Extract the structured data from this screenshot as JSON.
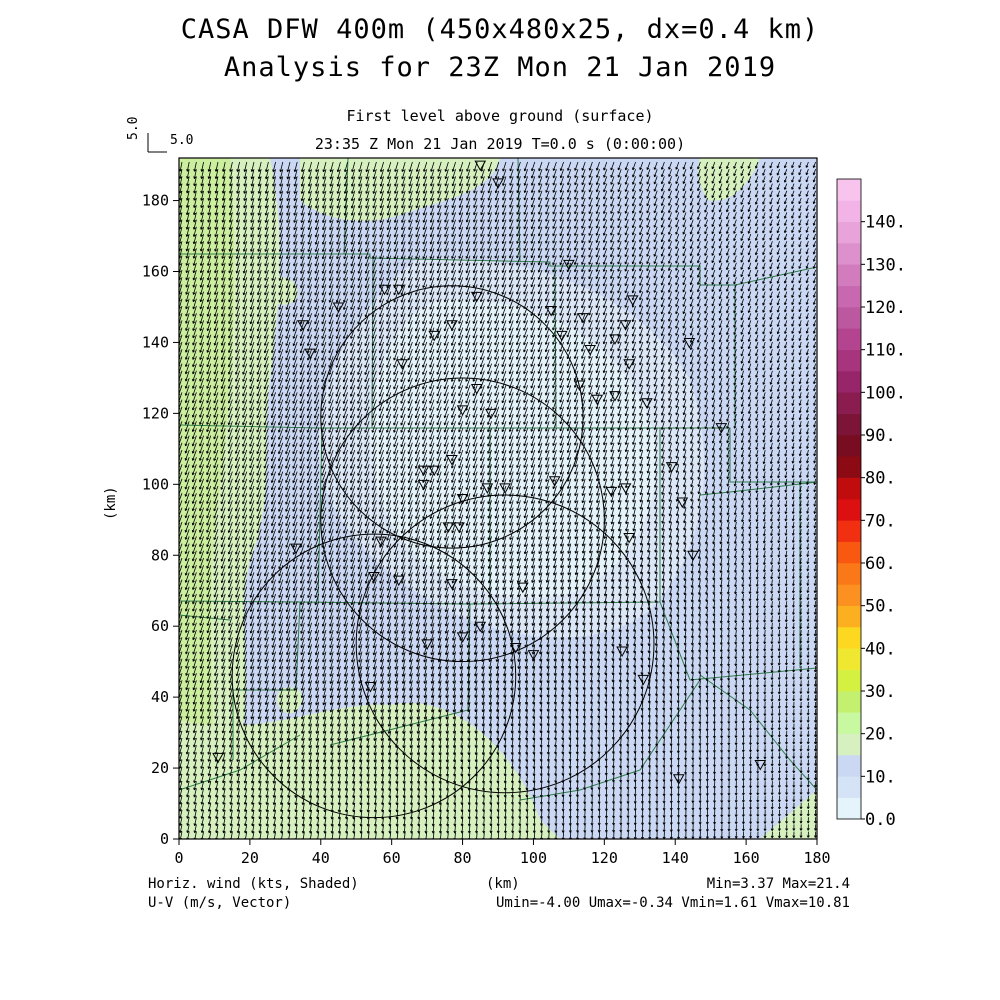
{
  "title": {
    "line1": "CASA DFW 400m (450x480x25, dx=0.4 km)",
    "line2": "Analysis for 23Z Mon 21 Jan 2019"
  },
  "subtitle": {
    "line1": "First level above ground (surface)",
    "line2": "23:35 Z Mon 21 Jan 2019    T=0.0 s (0:00:00)"
  },
  "vector_scale": {
    "label": "5.0",
    "label_vertical": "5.0"
  },
  "axes": {
    "xlabel": "(km)",
    "ylabel": "(km)",
    "xlim": [
      0,
      180
    ],
    "ylim": [
      0,
      192
    ],
    "xticks": [
      0,
      20,
      40,
      60,
      80,
      100,
      120,
      140,
      160,
      180
    ],
    "yticks": [
      0,
      20,
      40,
      60,
      80,
      100,
      120,
      140,
      160,
      180
    ]
  },
  "footer": {
    "left1": "Horiz. wind (kts, Shaded)",
    "left2": "U-V (m/s, Vector)",
    "right1": "Min=3.37 Max=21.4",
    "right2": "Umin=-4.00 Umax=-0.34 Vmin=1.61 Vmax=10.81"
  },
  "colorbar": {
    "labels": [
      "0.0",
      "10.",
      "20.",
      "30.",
      "40.",
      "50.",
      "60.",
      "70.",
      "80.",
      "90.",
      "100.",
      "110.",
      "120.",
      "130.",
      "140."
    ],
    "colors": [
      "#e4f4fa",
      "#d4e4f6",
      "#cbd8f4",
      "#d7f0bf",
      "#c8f8a0",
      "#c4f070",
      "#d4f040",
      "#f0e830",
      "#fcd820",
      "#fcb020",
      "#fc9020",
      "#fa7818",
      "#f85810",
      "#f03010",
      "#dc1010",
      "#c00c0c",
      "#8c0a14",
      "#780c20",
      "#7c1438",
      "#8a1c50",
      "#98246a",
      "#a8347e",
      "#b44490",
      "#bc58a0",
      "#c868b0",
      "#d27cbe",
      "#dc90cc",
      "#e8a4da",
      "#f2b4e6",
      "#f8c4ee"
    ]
  },
  "chart_data": {
    "type": "heatmap",
    "title": "CASA DFW 400m (450x480x25, dx=0.4 km)",
    "subtitle": "Analysis for 23Z Mon 21 Jan 2019",
    "xlabel": "(km)",
    "ylabel": "(km)",
    "xlim": [
      0,
      180
    ],
    "ylim": [
      0,
      192
    ],
    "field": "Horiz. wind (kts, Shaded)",
    "vectors": "U-V (m/s, Vector)",
    "min": 3.37,
    "max": 21.4,
    "umin": -4.0,
    "umax": -0.34,
    "vmin": 1.61,
    "vmax": 10.81,
    "radar_rings": [
      {
        "center": [
          77,
          119
        ],
        "radius": 37
      },
      {
        "center": [
          55,
          46
        ],
        "radius": 40
      },
      {
        "center": [
          80,
          90
        ],
        "radius": 40
      },
      {
        "center": [
          92,
          55
        ],
        "radius": 42
      }
    ],
    "stations": [
      [
        85,
        190
      ],
      [
        90,
        185
      ],
      [
        62,
        155
      ],
      [
        84,
        153
      ],
      [
        77,
        145
      ],
      [
        35,
        145
      ],
      [
        37,
        137
      ],
      [
        63,
        134
      ],
      [
        72,
        142
      ],
      [
        110,
        162
      ],
      [
        105,
        149
      ],
      [
        114,
        147
      ],
      [
        126,
        145
      ],
      [
        128,
        152
      ],
      [
        108,
        142
      ],
      [
        123,
        141
      ],
      [
        116,
        138
      ],
      [
        127,
        134
      ],
      [
        144,
        140
      ],
      [
        113,
        128
      ],
      [
        84,
        127
      ],
      [
        80,
        121
      ],
      [
        88,
        120
      ],
      [
        118,
        124
      ],
      [
        123,
        125
      ],
      [
        132,
        123
      ],
      [
        153,
        116
      ],
      [
        139,
        105
      ],
      [
        77,
        107
      ],
      [
        69,
        104
      ],
      [
        72,
        104
      ],
      [
        69,
        100
      ],
      [
        92,
        99
      ],
      [
        87,
        99
      ],
      [
        106,
        101
      ],
      [
        122,
        98
      ],
      [
        126,
        99
      ],
      [
        142,
        95
      ],
      [
        80,
        96
      ],
      [
        76,
        88
      ],
      [
        79,
        88
      ],
      [
        57,
        84
      ],
      [
        127,
        85
      ],
      [
        145,
        80
      ],
      [
        33,
        82
      ],
      [
        55,
        74
      ],
      [
        62,
        73
      ],
      [
        77,
        72
      ],
      [
        97,
        71
      ],
      [
        85,
        60
      ],
      [
        70,
        55
      ],
      [
        80,
        57
      ],
      [
        95,
        54
      ],
      [
        100,
        52
      ],
      [
        125,
        53
      ],
      [
        131,
        45
      ],
      [
        54,
        43
      ],
      [
        11,
        23
      ],
      [
        141,
        17
      ],
      [
        164,
        21
      ],
      [
        58,
        155
      ],
      [
        45,
        150
      ]
    ],
    "series": []
  }
}
